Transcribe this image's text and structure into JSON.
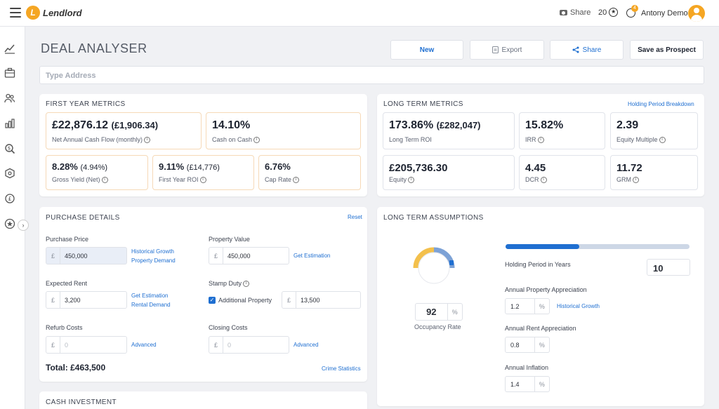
{
  "app": {
    "brand": "Lendlord",
    "logo_letter": "L"
  },
  "topbar": {
    "share_label": "Share",
    "points": "20",
    "notification_count": "4",
    "user_name": "Antony Demo"
  },
  "page": {
    "title": "DEAL ANALYSER"
  },
  "actions": {
    "new": "New",
    "export": "Export",
    "share": "Share",
    "save": "Save as Prospect"
  },
  "address": {
    "placeholder": "Type Address"
  },
  "first_year": {
    "title": "FIRST YEAR METRICS",
    "metrics": [
      {
        "value": "£22,876.12",
        "sub": "(£1,906.34)",
        "label": "Net Annual Cash Flow (monthly)"
      },
      {
        "value": "14.10%",
        "sub": "",
        "label": "Cash on Cash"
      },
      {
        "value": "8.28%",
        "sub": "(4.94%)",
        "label": "Gross Yield (Net)"
      },
      {
        "value": "9.11%",
        "sub": "(£14,776)",
        "label": "First Year ROI"
      },
      {
        "value": "6.76%",
        "sub": "",
        "label": "Cap Rate"
      }
    ]
  },
  "long_term": {
    "title": "LONG TERM METRICS",
    "link": "Holding Period Breakdown",
    "metrics": [
      {
        "value": "173.86%",
        "sub": "(£282,047)",
        "label": "Long Term ROI"
      },
      {
        "value": "15.82%",
        "sub": "",
        "label": "IRR"
      },
      {
        "value": "2.39",
        "sub": "",
        "label": "Equity Multiple"
      },
      {
        "value": "£205,736.30",
        "sub": "",
        "label": "Equity"
      },
      {
        "value": "4.45",
        "sub": "",
        "label": "DCR"
      },
      {
        "value": "11.72",
        "sub": "",
        "label": "GRM"
      }
    ]
  },
  "purchase": {
    "title": "PURCHASE DETAILS",
    "reset": "Reset",
    "currency": "£",
    "purchase_price": {
      "label": "Purchase Price",
      "value": "450,000",
      "links": [
        "Historical Growth",
        "Property Demand"
      ]
    },
    "property_value": {
      "label": "Property Value",
      "value": "450,000",
      "link": "Get Estimation"
    },
    "expected_rent": {
      "label": "Expected Rent",
      "value": "3,200",
      "links": [
        "Get Estimation",
        "Rental Demand"
      ]
    },
    "stamp_duty": {
      "label": "Stamp Duty",
      "checkbox_label": "Additional Property",
      "value": "13,500"
    },
    "refurb": {
      "label": "Refurb Costs",
      "placeholder": "0",
      "link": "Advanced"
    },
    "closing": {
      "label": "Closing Costs",
      "placeholder": "0",
      "link": "Advanced"
    },
    "total": "Total: £463,500",
    "crime_link": "Crime Statistics"
  },
  "cash_investment": {
    "title": "CASH INVESTMENT"
  },
  "assumptions": {
    "title": "LONG TERM ASSUMPTIONS",
    "occupancy": {
      "value": "92",
      "unit": "%",
      "label": "Occupancy Rate"
    },
    "holding_period": {
      "label": "Holding Period in Years",
      "value": "10",
      "slider_fraction": 0.4
    },
    "property_appreciation": {
      "label": "Annual Property Appreciation",
      "value": "1.2",
      "unit": "%",
      "link": "Historical Growth"
    },
    "rent_appreciation": {
      "label": "Annual Rent Appreciation",
      "value": "0.8",
      "unit": "%"
    },
    "inflation": {
      "label": "Annual Inflation",
      "value": "1.4",
      "unit": "%"
    }
  },
  "colors": {
    "accent": "#1f6fd1",
    "brand": "#f5a623",
    "card_border_orange": "#f6d9b7"
  }
}
